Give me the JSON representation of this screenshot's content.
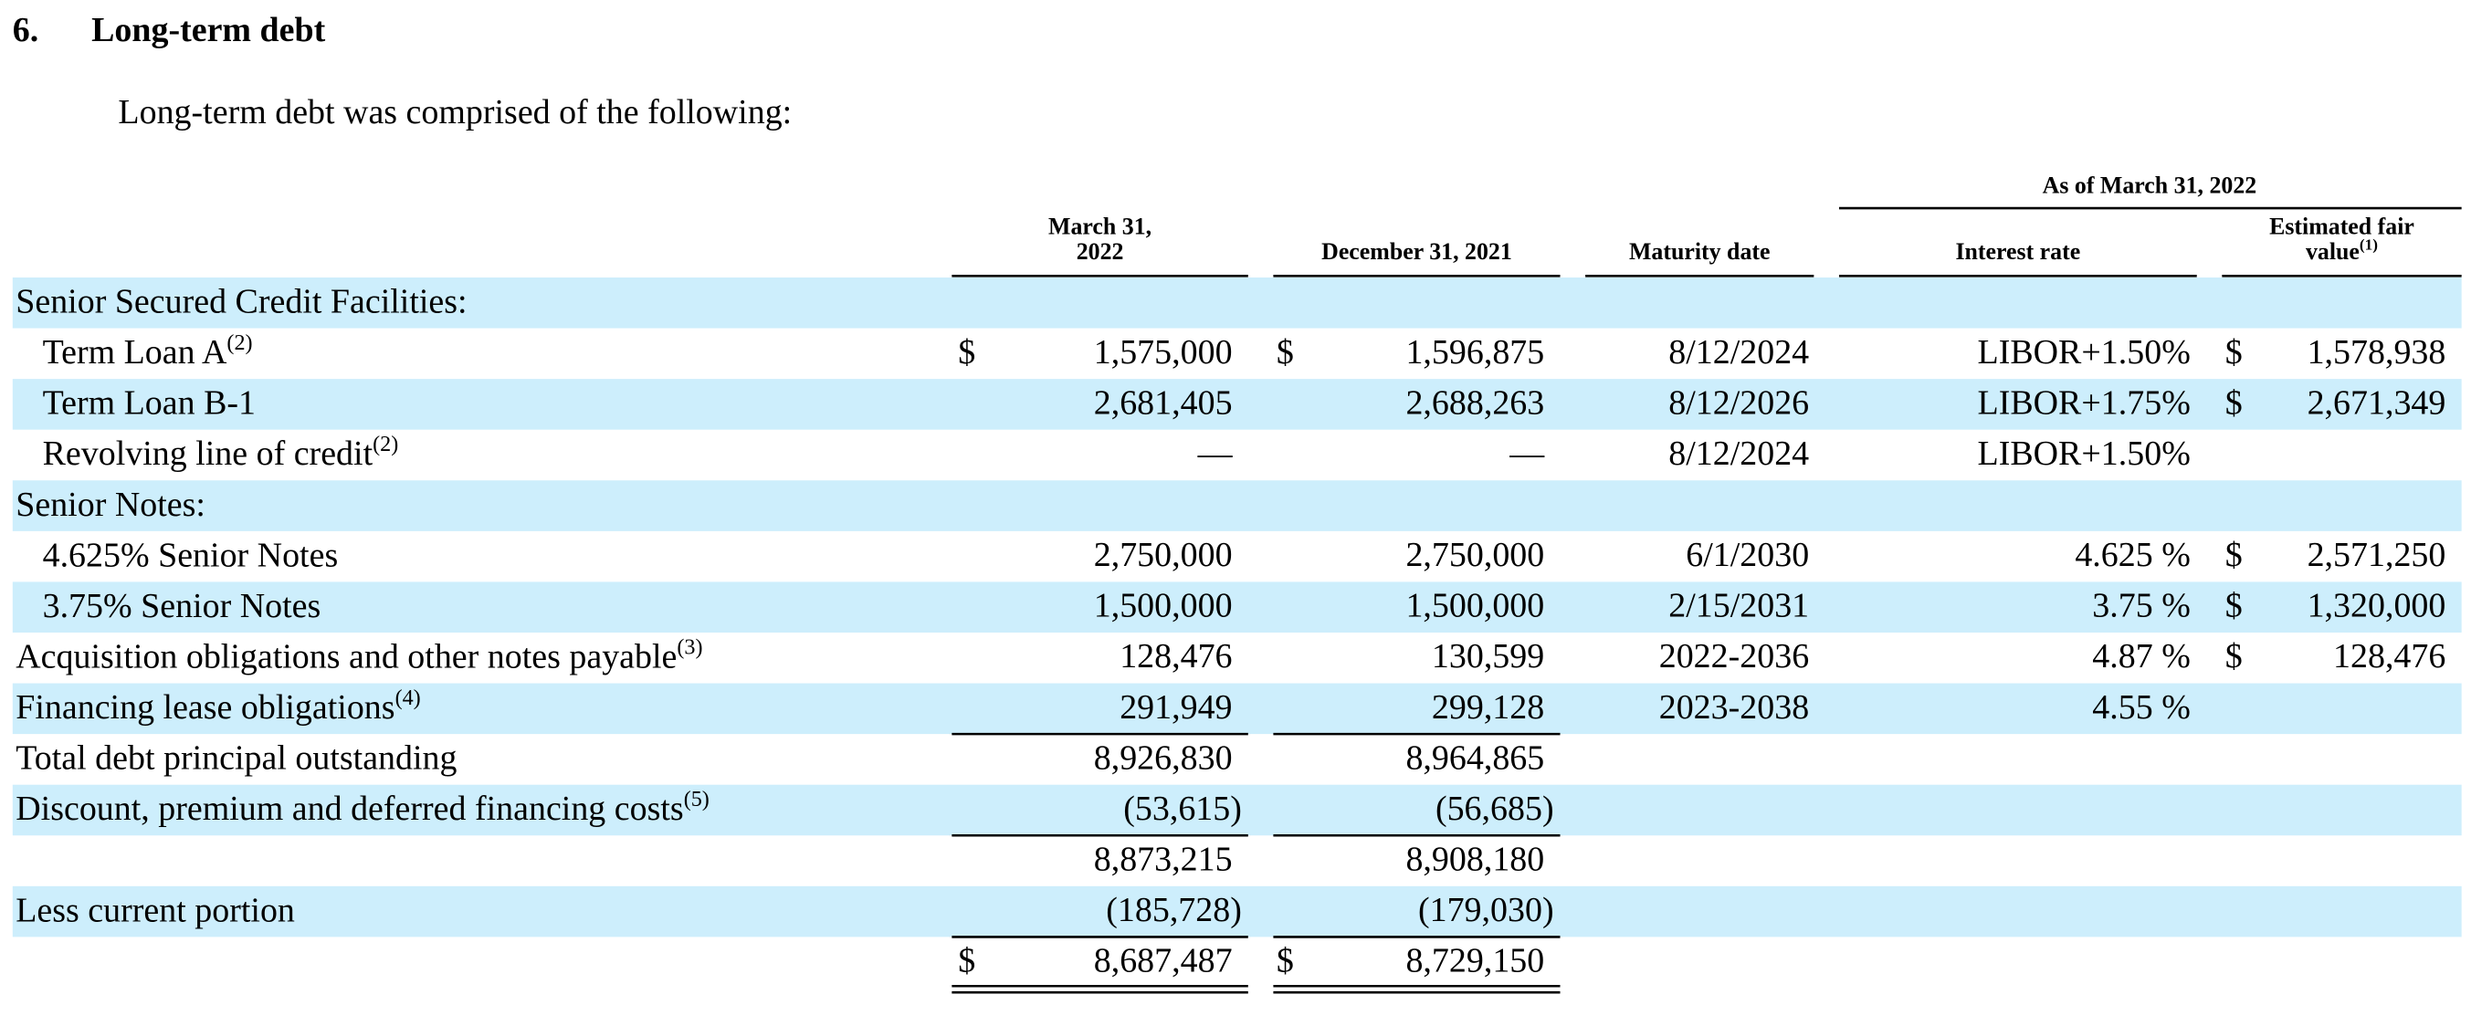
{
  "heading": {
    "number": "6.",
    "title": "Long-term debt"
  },
  "intro": "Long-term debt was comprised of the following:",
  "table": {
    "group_header": "As of March 31, 2022",
    "columns": [
      {
        "lines": [
          "March 31,",
          "2022"
        ]
      },
      {
        "lines": [
          "December 31, 2021"
        ]
      },
      {
        "lines": [
          "Maturity date"
        ]
      },
      {
        "lines": [
          "Interest rate"
        ]
      },
      {
        "lines": [
          "Estimated fair",
          "value"
        ],
        "note": "(1)"
      }
    ],
    "rows": [
      {
        "label": "Senior Secured Credit Facilities:",
        "cells": []
      },
      {
        "label": "Term Loan A",
        "note": "(2)",
        "cells": [
          {
            "currency": "$",
            "amount": "1,575,000"
          },
          {
            "currency": "$",
            "amount": "1,596,875"
          },
          "8/12/2024",
          "LIBOR+1.50%",
          {
            "currency": "$",
            "amount": "1,578,938"
          }
        ]
      },
      {
        "label": "Term Loan B-1",
        "cells": [
          "2,681,405",
          "2,688,263",
          "8/12/2026",
          "LIBOR+1.75%",
          {
            "currency": "$",
            "amount": "2,671,349"
          }
        ]
      },
      {
        "label": "Revolving line of credit",
        "note": "(2)",
        "cells": [
          "—",
          "—",
          "8/12/2024",
          "LIBOR+1.50%",
          null
        ]
      },
      {
        "label": "Senior Notes:",
        "cells": []
      },
      {
        "label": "4.625% Senior Notes",
        "cells": [
          "2,750,000",
          "2,750,000",
          "6/1/2030",
          "4.625 %",
          {
            "currency": "$",
            "amount": "2,571,250"
          }
        ]
      },
      {
        "label": "3.75% Senior Notes",
        "cells": [
          "1,500,000",
          "1,500,000",
          "2/15/2031",
          "3.75 %",
          {
            "currency": "$",
            "amount": "1,320,000"
          }
        ]
      },
      {
        "label": "Acquisition obligations and other notes payable",
        "note": "(3)",
        "cells": [
          "128,476",
          "130,599",
          "2022-2036",
          "4.87 %",
          {
            "currency": "$",
            "amount": "128,476"
          }
        ]
      },
      {
        "label": "Financing lease obligations",
        "note": "(4)",
        "cells": [
          "291,949",
          "299,128",
          "2023-2038",
          "4.55 %",
          null
        ]
      },
      {
        "label": "Total debt principal outstanding",
        "cells": [
          "8,926,830",
          "8,964,865"
        ]
      },
      {
        "label": "Discount, premium and deferred financing costs",
        "note": "(5)",
        "cells": [
          "(53,615)",
          "(56,685)"
        ]
      },
      {
        "label": null,
        "cells": [
          "8,873,215",
          "8,908,180"
        ]
      },
      {
        "label": "Less current portion",
        "cells": [
          "(185,728)",
          "(179,030)"
        ]
      },
      {
        "label": null,
        "cells": [
          {
            "currency": "$",
            "amount": "8,687,487"
          },
          {
            "currency": "$",
            "amount": "8,729,150"
          }
        ]
      }
    ]
  }
}
